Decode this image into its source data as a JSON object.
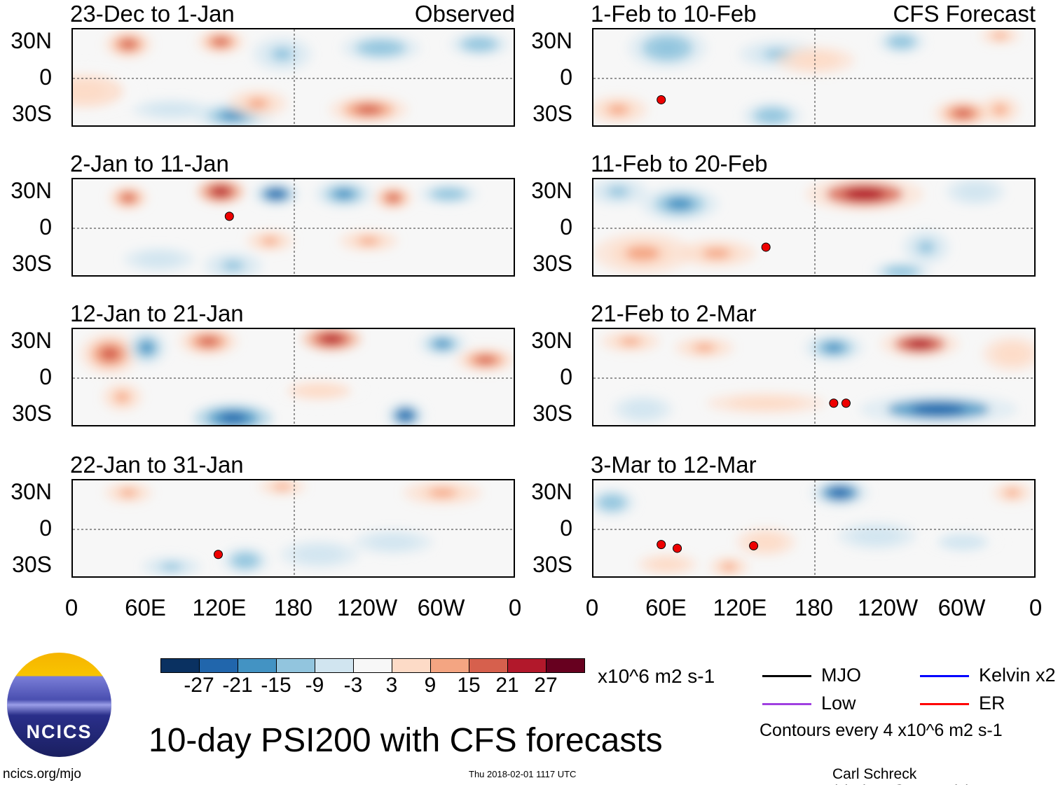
{
  "panels": [
    {
      "title": "23-Dec to 1-Jan",
      "tag": "Observed"
    },
    {
      "title": "2-Jan to 11-Jan",
      "tag": ""
    },
    {
      "title": "12-Jan to 21-Jan",
      "tag": ""
    },
    {
      "title": "22-Jan to 31-Jan",
      "tag": ""
    },
    {
      "title": "1-Feb to 10-Feb",
      "tag": "CFS Forecast"
    },
    {
      "title": "11-Feb to 20-Feb",
      "tag": ""
    },
    {
      "title": "21-Feb to 2-Mar",
      "tag": ""
    },
    {
      "title": "3-Mar to 12-Mar",
      "tag": ""
    }
  ],
  "chart_data": {
    "type": "heatmap",
    "title": "10-day PSI200 with CFS forecasts",
    "yticks": [
      "30N",
      "0",
      "30S"
    ],
    "xticks": [
      "0",
      "60E",
      "120E",
      "180",
      "120W",
      "60W",
      "0"
    ],
    "units": "x10^6 m2 s-1",
    "colorbar": {
      "labels": [
        "-27",
        "-21",
        "-15",
        "-9",
        "-3",
        "3",
        "9",
        "15",
        "21",
        "27"
      ],
      "colors": [
        "#0a3161",
        "#2166ac",
        "#4393c3",
        "#92c5de",
        "#d1e5f0",
        "#f7f7f7",
        "#fddbc7",
        "#f4a582",
        "#d6604d",
        "#b2182b",
        "#67001f"
      ]
    }
  },
  "legend": {
    "items": [
      {
        "label": "MJO",
        "color": "#000000"
      },
      {
        "label": "Kelvin x2",
        "color": "#0000ff"
      },
      {
        "label": "Low",
        "color": "#a040e0"
      },
      {
        "label": "ER",
        "color": "#ff0000"
      }
    ],
    "contours": "Contours every 4 x10^6 m2 s-1"
  },
  "footer": {
    "site": "ncics.org/mjo",
    "timestamp": "Thu 2018-02-01 1117 UTC",
    "author": "Carl Schreck (cjschrec@ncsu.edu)",
    "logo": "NCICS"
  }
}
